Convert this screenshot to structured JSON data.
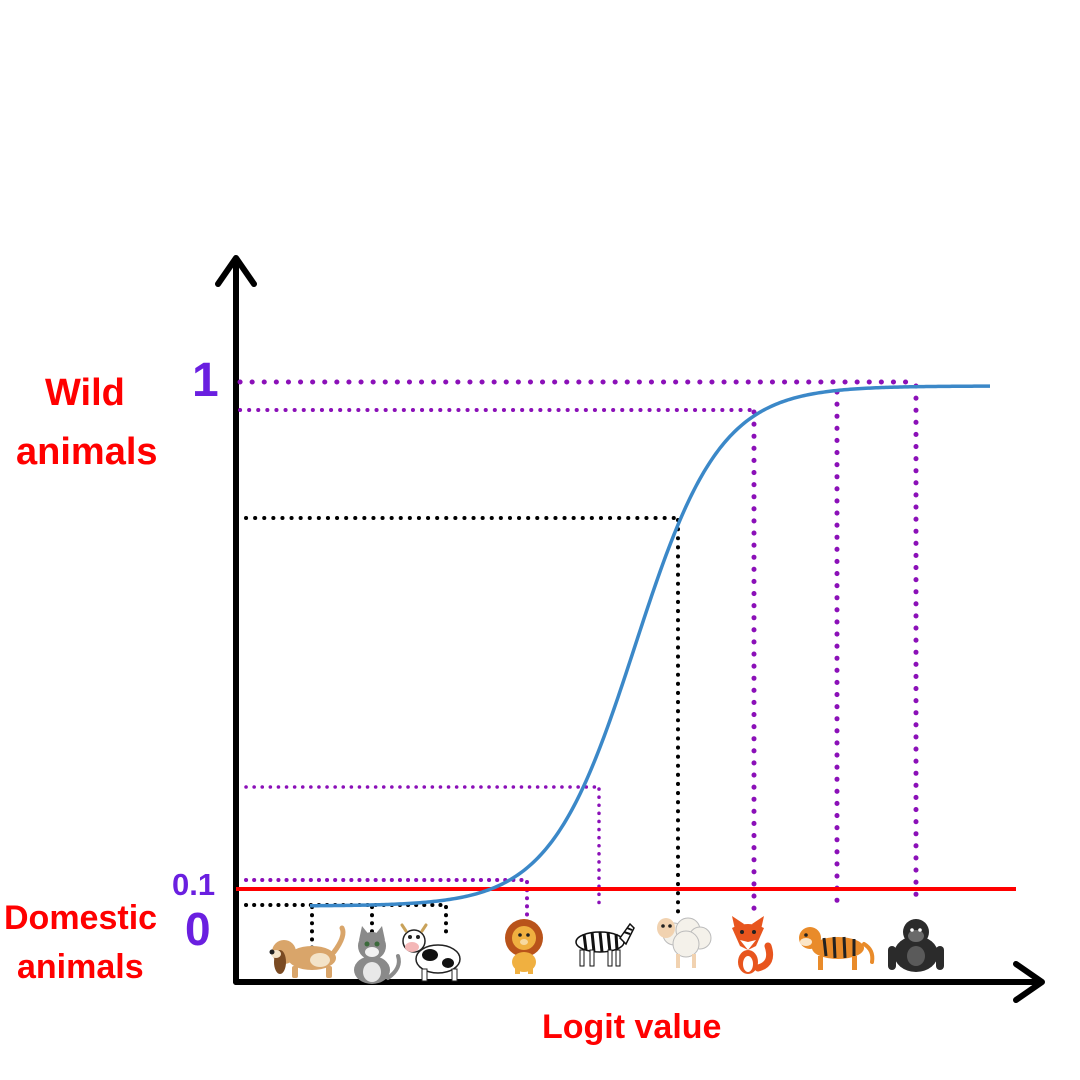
{
  "labels": {
    "wild_line1": "Wild",
    "wild_line2": "animals",
    "domestic_line1": "Domestic",
    "domestic_line2": "animals",
    "x_axis": "Logit value",
    "tick_one": "1",
    "tick_zero": "0",
    "threshold": "0.1"
  },
  "colors": {
    "curve": "#3b88c8",
    "threshold_line": "#ff0000",
    "wild_guides": "#8b10b8",
    "neutral_guides": "#000000",
    "axis": "#000000",
    "label_red": "#ff0000",
    "label_purple": "#6a1fe0"
  },
  "animals": [
    {
      "name": "dog",
      "icon": "dog-icon",
      "guide": "neutral"
    },
    {
      "name": "cat",
      "icon": "cat-icon",
      "guide": "neutral"
    },
    {
      "name": "cow",
      "icon": "cow-icon",
      "guide": "neutral"
    },
    {
      "name": "lion",
      "icon": "lion-icon",
      "guide": "wild"
    },
    {
      "name": "zebra",
      "icon": "zebra-icon",
      "guide": "wild"
    },
    {
      "name": "sheep",
      "icon": "sheep-icon",
      "guide": "neutral"
    },
    {
      "name": "fox",
      "icon": "fox-icon",
      "guide": "wild"
    },
    {
      "name": "tiger",
      "icon": "tiger-icon",
      "guide": "wild"
    },
    {
      "name": "gorilla",
      "icon": "gorilla-icon",
      "guide": "wild"
    }
  ]
}
